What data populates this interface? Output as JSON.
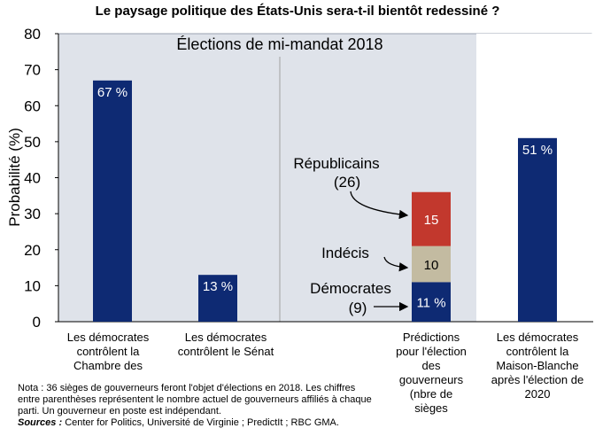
{
  "chart_data": {
    "type": "bar",
    "title": "Le paysage politique des États-Unis sera-t-il bientôt redessiné ?",
    "ylabel": "Probabilité (%)",
    "ylim": [
      0,
      80
    ],
    "yticks": [
      "0",
      "10",
      "20",
      "30",
      "40",
      "50",
      "60",
      "70",
      "80"
    ],
    "shaded_label": "Élections de mi-mandat 2018",
    "categories": [
      [
        "Les démocrates",
        "contrôlent la",
        "Chambre des"
      ],
      [
        "Les démocrates",
        "contrôlent le Sénat"
      ],
      [
        "Prédictions",
        "pour l'élection",
        "des",
        "gouverneurs",
        "(nbre de",
        "sièges"
      ],
      [
        "Les démocrates",
        "contrôlent la",
        "Maison-Blanche",
        "après l'élection de",
        "2020"
      ]
    ],
    "bars": [
      {
        "value": 67,
        "label": "67 %"
      },
      {
        "value": 13,
        "label": "13 %"
      },
      {
        "value": 51,
        "label": "51 %"
      }
    ],
    "stacked": {
      "segments": [
        {
          "name": "Démocrates",
          "count": "(9)",
          "value": 11,
          "label": "11 %",
          "color": "#0e2a73"
        },
        {
          "name": "Indécis",
          "count": "",
          "value": 10,
          "label": "10",
          "color": "#c3bba1"
        },
        {
          "name": "Républicains",
          "count": "(26)",
          "value": 15,
          "label": "15",
          "color": "#c2382d"
        }
      ]
    },
    "colors": {
      "bar": "#0e2a73",
      "shade": "#dfe3ea"
    }
  },
  "note": {
    "text": "Nota : 36 sièges de gouverneurs feront l'objet d'élections en 2018. Les chiffres entre parenthèses représentent le nombre actuel de gouverneurs affiliés à chaque parti. Un gouverneur en poste est indépendant.",
    "sources_label": "Sources :",
    "sources": " Center for Politics, Université de Virginie ; PredictIt ; RBC GMA."
  }
}
